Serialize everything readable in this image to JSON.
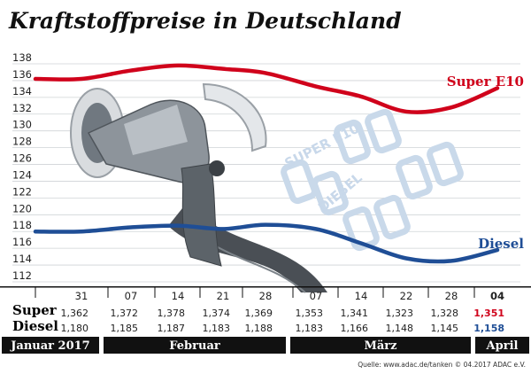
{
  "title": "Kraftstoffpreise in Deutschland",
  "source": "Quelle: www.adac.de/tanken  © 04.2017  ADAC e.V.",
  "colors": {
    "super": "#d0021b",
    "diesel": "#1f4e96",
    "band": "#111111"
  },
  "illustration": {
    "description_icon": "fuel-nozzle-icon",
    "label_super": "SUPER E10",
    "label_diesel": "DIESEL"
  },
  "row_labels": {
    "super": "Super",
    "diesel": "Diesel"
  },
  "chart_data": {
    "type": "line",
    "title": "Kraftstoffpreise in Deutschland",
    "xlabel": "",
    "ylabel": "",
    "ylim": [
      112,
      138
    ],
    "yticks": [
      112,
      114,
      116,
      118,
      120,
      122,
      124,
      126,
      128,
      130,
      132,
      134,
      136,
      138
    ],
    "grid": true,
    "categories": [
      "31",
      "07",
      "14",
      "21",
      "28",
      "07",
      "14",
      "22",
      "28",
      "04"
    ],
    "months": [
      {
        "label": "Januar 2017",
        "start": 0,
        "end": 0
      },
      {
        "label": "Februar",
        "start": 1,
        "end": 4
      },
      {
        "label": "März",
        "start": 5,
        "end": 8
      },
      {
        "label": "April",
        "start": 9,
        "end": 9
      }
    ],
    "series": [
      {
        "name": "Super E10",
        "key": "super",
        "values": [
          136.2,
          137.2,
          137.8,
          137.4,
          136.9,
          135.3,
          134.1,
          132.3,
          132.8,
          135.1
        ],
        "table_values": [
          "1,362",
          "1,372",
          "1,378",
          "1,374",
          "1,369",
          "1,353",
          "1,341",
          "1,323",
          "1,328",
          "1,351"
        ]
      },
      {
        "name": "Diesel",
        "key": "diesel",
        "values": [
          118.0,
          118.5,
          118.7,
          118.3,
          118.8,
          118.3,
          116.6,
          114.8,
          114.5,
          115.8
        ],
        "table_values": [
          "1,180",
          "1,185",
          "1,187",
          "1,183",
          "1,188",
          "1,183",
          "1,166",
          "1,148",
          "1,145",
          "1,158"
        ]
      }
    ]
  }
}
